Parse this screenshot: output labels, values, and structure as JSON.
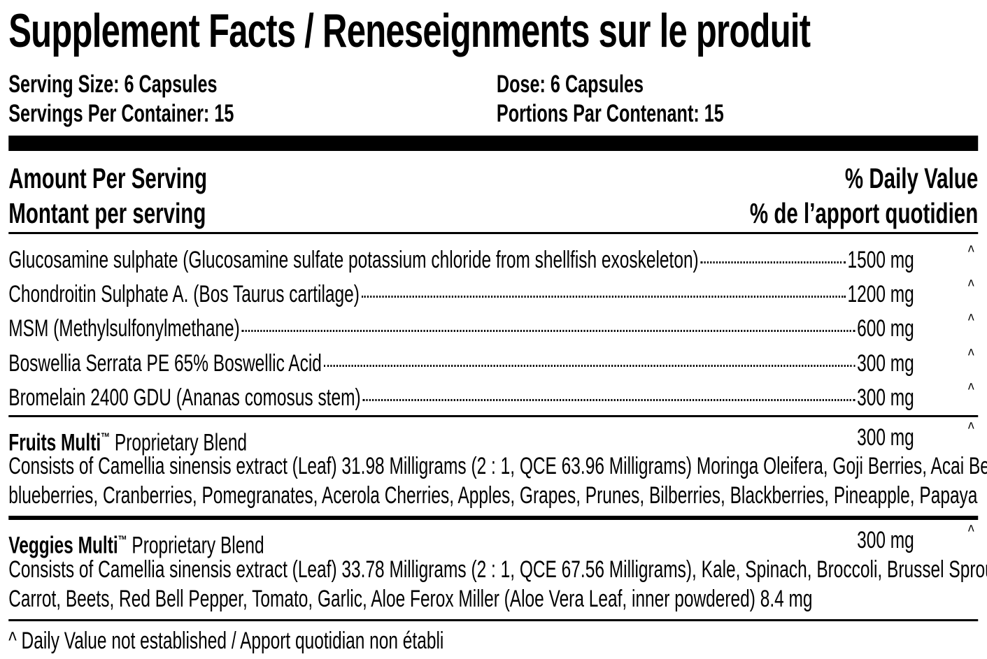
{
  "title": "Supplement Facts / Reneseignments sur le produit",
  "serving": {
    "size_en": "Serving Size: 6 Capsules",
    "per_container_en": "Servings Per Container: 15",
    "size_fr": "Dose: 6 Capsules",
    "per_container_fr": "Portions Par Contenant: 15"
  },
  "header": {
    "amount_en": "Amount Per Serving",
    "amount_fr": "Montant per serving",
    "dv_en": "% Daily Value",
    "dv_fr": "% de l’apport quotidien"
  },
  "ingredients": [
    {
      "name": "Glucosamine sulphate (Glucosamine sulfate potassium chloride from shellfish exoskeleton)",
      "amount": "1500 mg",
      "dv": "^"
    },
    {
      "name": "Chondroitin Sulphate A. (Bos Taurus cartilage)",
      "amount": "1200 mg",
      "dv": "^"
    },
    {
      "name": "MSM (Methylsulfonylmethane)",
      "amount": "600 mg",
      "dv": "^"
    },
    {
      "name": "Boswellia Serrata PE 65% Boswellic Acid",
      "amount": "300 mg",
      "dv": "^"
    },
    {
      "name": "Bromelain 2400 GDU (Ananas comosus stem)",
      "amount": "300 mg",
      "dv": "^"
    }
  ],
  "blends": [
    {
      "brand": "Fruits Multi",
      "tm": "™",
      "suffix": " Proprietary Blend",
      "amount": "300 mg",
      "dv": "^",
      "line1": "Consists of Camellia sinensis extract (Leaf) 31.98 Milligrams (2 : 1, QCE 63.96 Milligrams) Moringa Oleifera, Goji Berries, Acai Berries,",
      "line2": "blueberries, Cranberries, Pomegranates, Acerola Cherries, Apples, Grapes, Prunes, Bilberries, Blackberries, Pineapple, Papaya"
    },
    {
      "brand": "Veggies Multi",
      "tm": "™",
      "suffix": " Proprietary Blend",
      "amount": "300 mg",
      "dv": "^",
      "line1": "Consists of Camellia sinensis extract (Leaf) 33.78 Milligrams (2 : 1, QCE 67.56 Milligrams), Kale, Spinach, Broccoli, Brussel Sprouts,",
      "line2": "Carrot, Beets, Red Bell Pepper, Tomato, Garlic, Aloe Ferox Miller (Aloe Vera Leaf, inner powdered) 8.4 mg"
    }
  ],
  "footnote": "^ Daily Value not established / Apport quotidian non établi"
}
